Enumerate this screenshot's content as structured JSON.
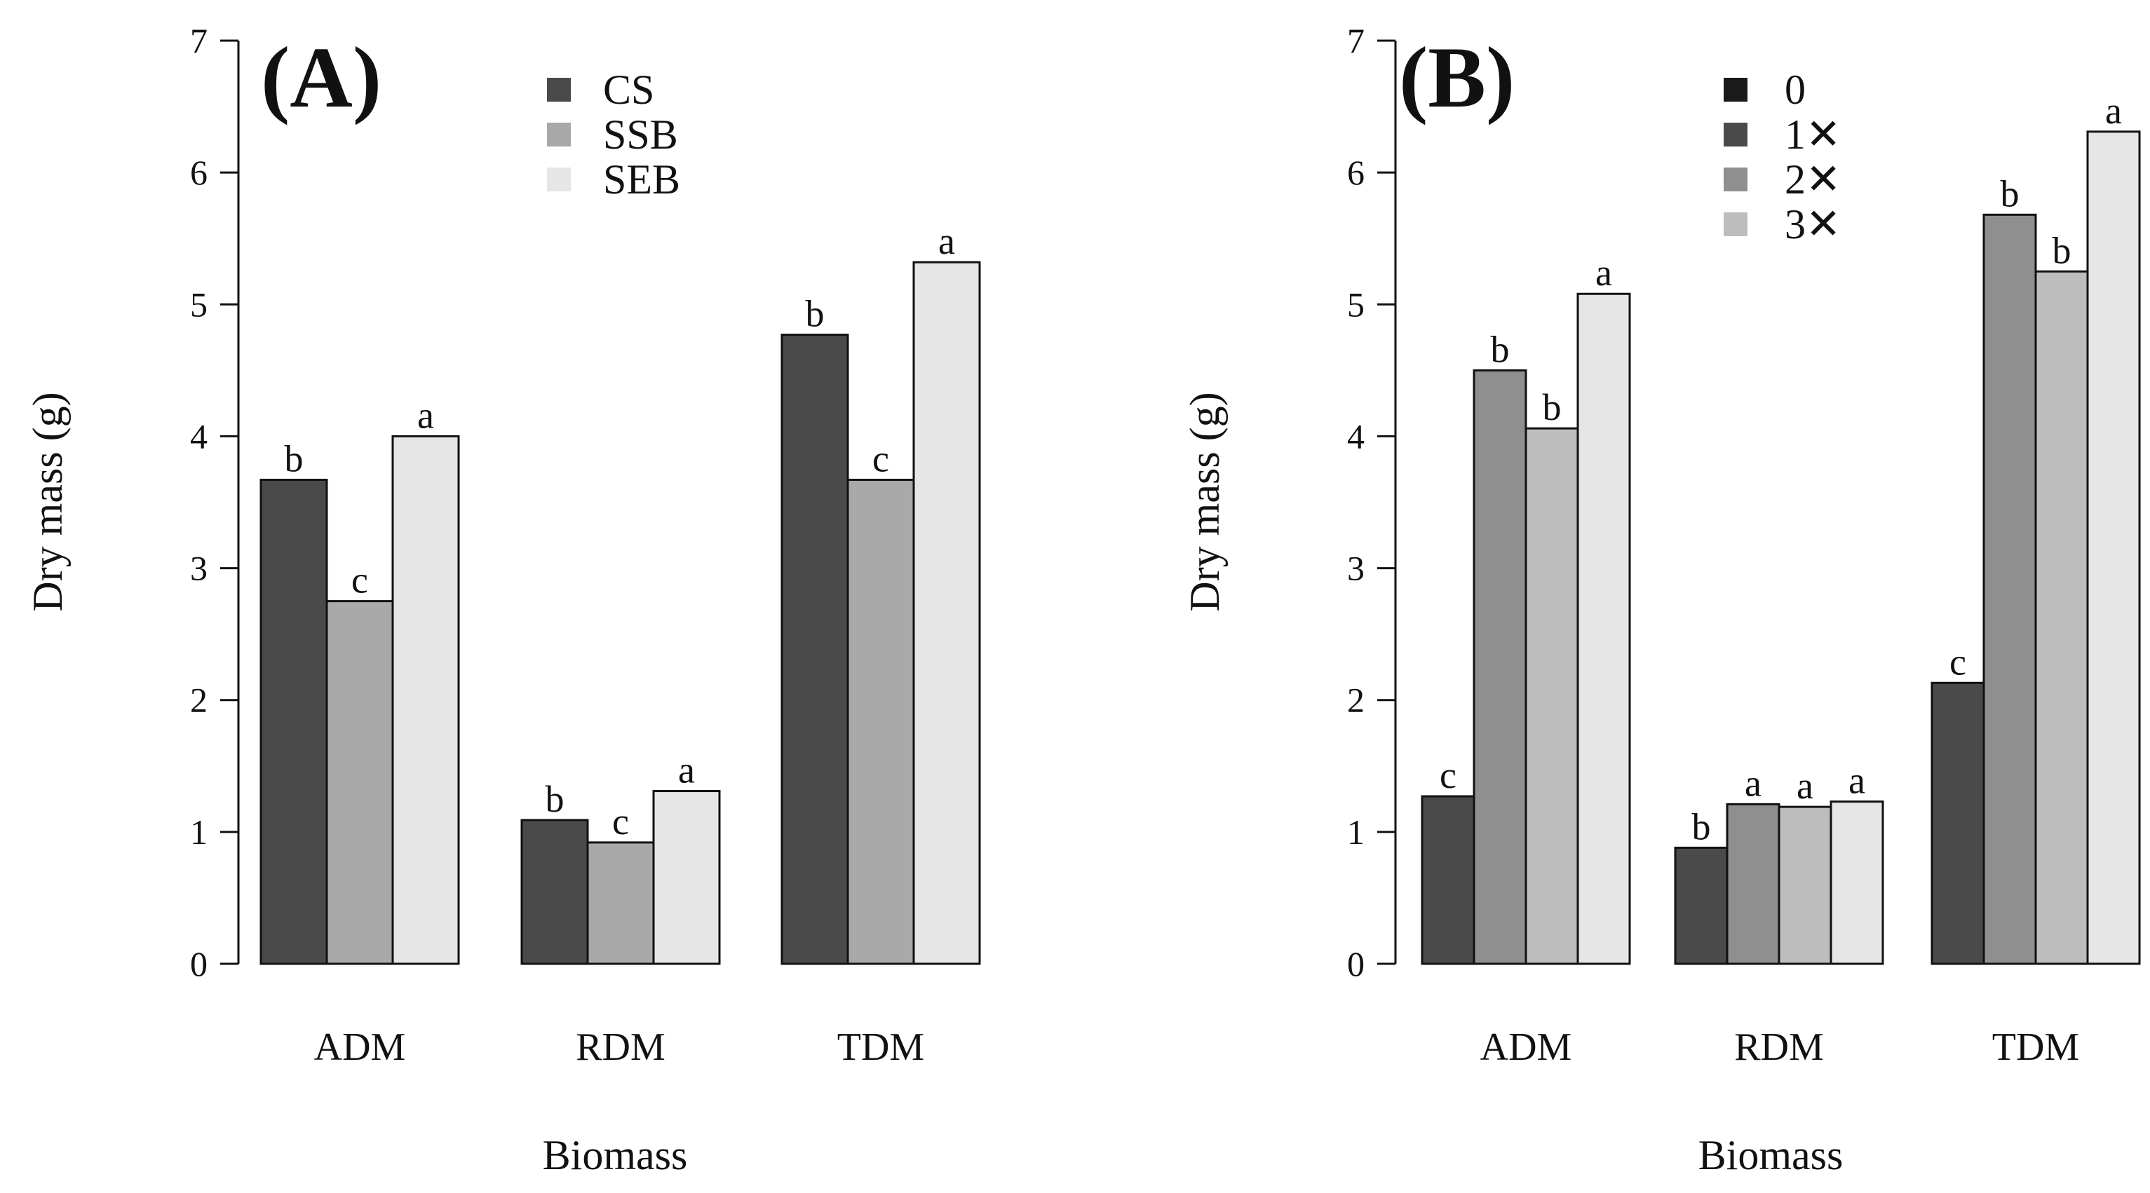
{
  "chart_data": [
    {
      "type": "bar",
      "panel": "(A)",
      "title": "",
      "xlabel": "Biomass",
      "ylabel": "Dry mass (g)",
      "ylim": [
        0,
        7
      ],
      "yticks": [
        0,
        1,
        2,
        3,
        4,
        5,
        6,
        7
      ],
      "categories": [
        "ADM",
        "RDM",
        "TDM"
      ],
      "legend_position": "top-center",
      "series": [
        {
          "name": "CS",
          "color": "#4a4a4a",
          "values": [
            3.67,
            1.09,
            4.77
          ],
          "labels": [
            "b",
            "b",
            "b"
          ]
        },
        {
          "name": "SSB",
          "color": "#a9a9a9",
          "values": [
            2.75,
            0.92,
            3.67
          ],
          "labels": [
            "c",
            "c",
            "c"
          ]
        },
        {
          "name": "SEB",
          "color": "#e6e6e6",
          "values": [
            4.0,
            1.31,
            5.32
          ],
          "labels": [
            "a",
            "a",
            "a"
          ]
        }
      ]
    },
    {
      "type": "bar",
      "panel": "(B)",
      "title": "",
      "xlabel": "Biomass",
      "ylabel": "Dry mass (g)",
      "ylim": [
        0,
        7
      ],
      "yticks": [
        0,
        1,
        2,
        3,
        4,
        5,
        6,
        7
      ],
      "categories": [
        "ADM",
        "RDM",
        "TDM"
      ],
      "legend_position": "top-center",
      "series": [
        {
          "name": "0",
          "color": "#4a4a4a",
          "legend_color": "#1a1a1a",
          "values": [
            1.27,
            0.88,
            2.13
          ],
          "labels": [
            "c",
            "b",
            "c"
          ]
        },
        {
          "name": "1✕",
          "color": "#8f8f8f",
          "legend_color": "#4a4a4a",
          "values": [
            4.5,
            1.21,
            5.68
          ],
          "labels": [
            "b",
            "a",
            "b"
          ]
        },
        {
          "name": "2✕",
          "color": "#bdbdbd",
          "legend_color": "#8f8f8f",
          "values": [
            4.06,
            1.19,
            5.25
          ],
          "labels": [
            "b",
            "a",
            "b"
          ]
        },
        {
          "name": "3✕",
          "color": "#e6e6e6",
          "legend_color": "#bdbdbd",
          "values": [
            5.08,
            1.23,
            6.31
          ],
          "labels": [
            "a",
            "a",
            "a"
          ]
        }
      ]
    }
  ]
}
